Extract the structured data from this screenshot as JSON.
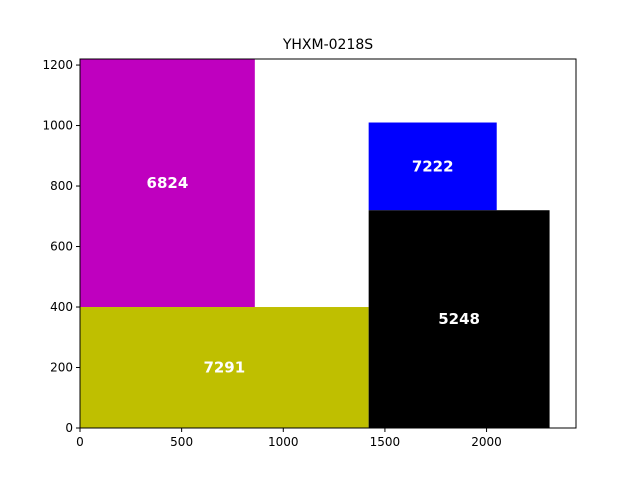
{
  "chart_data": {
    "type": "treemap",
    "title": "YHXM-0218S",
    "xlim": [
      0,
      2440
    ],
    "ylim": [
      0,
      1220
    ],
    "xticks": [
      0,
      500,
      1000,
      1500,
      2000
    ],
    "yticks": [
      0,
      200,
      400,
      600,
      800,
      1000,
      1200
    ],
    "rects": [
      {
        "label": "6824",
        "x": 0,
        "y": 400,
        "w": 860,
        "h": 820,
        "color": "#bf00bf"
      },
      {
        "label": "7291",
        "x": 0,
        "y": 0,
        "w": 1420,
        "h": 400,
        "color": "#bfbf00"
      },
      {
        "label": "7222",
        "x": 1420,
        "y": 720,
        "w": 630,
        "h": 290,
        "color": "#0000ff"
      },
      {
        "label": "5248",
        "x": 1420,
        "y": 0,
        "w": 890,
        "h": 720,
        "color": "#000000"
      }
    ]
  }
}
